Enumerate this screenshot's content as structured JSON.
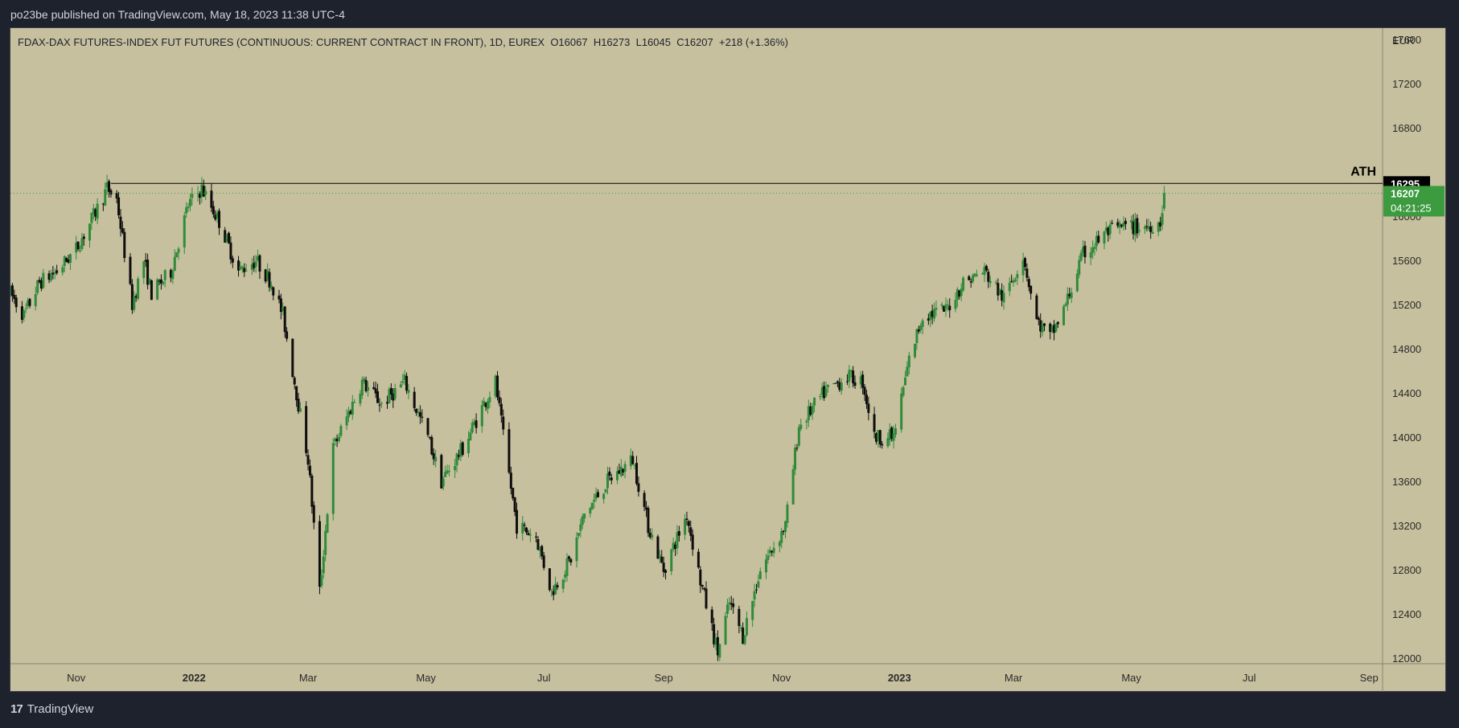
{
  "publisher_line": "po23be published on TradingView.com, May 18, 2023 11:38 UTC-4",
  "brand": {
    "logo_icon": "tradingview-logo-icon",
    "name": "TradingView"
  },
  "colors": {
    "background": "#c7c09f",
    "up": "#2f8b3a",
    "down": "#0d0d0d",
    "price_tag": "#3c9a3f",
    "ath_tag": "#000000"
  },
  "chart_data": {
    "type": "candlestick",
    "title": "FDAX-DAX FUTURES-INDEX FUT FUTURES (CONTINUOUS: CURRENT CONTRACT IN FRONT), 1D, EUREX",
    "ohlc_summary": {
      "open": "O16067",
      "high": "H16273",
      "low": "L16045",
      "close": "C16207",
      "change": "+218 (+1.36%)"
    },
    "currency": "EUR",
    "y_ticks": [
      12000,
      12400,
      12800,
      13200,
      13600,
      14000,
      14400,
      14800,
      15200,
      15600,
      16000,
      16800,
      17200,
      17600
    ],
    "ylim": [
      11950,
      17700
    ],
    "x_ticks": [
      {
        "label": "Nov",
        "date": "2021-11-01",
        "bold": false
      },
      {
        "label": "2022",
        "date": "2022-01-01",
        "bold": true
      },
      {
        "label": "Mar",
        "date": "2022-03-01",
        "bold": false
      },
      {
        "label": "May",
        "date": "2022-05-01",
        "bold": false
      },
      {
        "label": "Jul",
        "date": "2022-07-01",
        "bold": false
      },
      {
        "label": "Sep",
        "date": "2022-09-01",
        "bold": false
      },
      {
        "label": "Nov",
        "date": "2022-11-01",
        "bold": false
      },
      {
        "label": "2023",
        "date": "2023-01-01",
        "bold": true
      },
      {
        "label": "Mar",
        "date": "2023-03-01",
        "bold": false
      },
      {
        "label": "May",
        "date": "2023-05-01",
        "bold": false
      },
      {
        "label": "Jul",
        "date": "2023-07-01",
        "bold": false
      },
      {
        "label": "Sep",
        "date": "2023-09-01",
        "bold": false
      }
    ],
    "xlim": [
      "2021-09-28",
      "2023-09-08"
    ],
    "path": [
      [
        "2021-09-28",
        15300
      ],
      [
        "2021-10-05",
        15100
      ],
      [
        "2021-10-13",
        15400
      ],
      [
        "2021-10-22",
        15500
      ],
      [
        "2021-11-01",
        15700
      ],
      [
        "2021-11-10",
        16000
      ],
      [
        "2021-11-17",
        16250
      ],
      [
        "2021-11-22",
        16150
      ],
      [
        "2021-11-30",
        15200
      ],
      [
        "2021-12-06",
        15600
      ],
      [
        "2021-12-10",
        15300
      ],
      [
        "2021-12-20",
        15500
      ],
      [
        "2021-12-29",
        16100
      ],
      [
        "2022-01-05",
        16250
      ],
      [
        "2022-01-14",
        15950
      ],
      [
        "2022-01-24",
        15500
      ],
      [
        "2022-02-02",
        15600
      ],
      [
        "2022-02-10",
        15400
      ],
      [
        "2022-02-16",
        15100
      ],
      [
        "2022-02-24",
        14300
      ],
      [
        "2022-03-01",
        13800
      ],
      [
        "2022-03-07",
        12600
      ],
      [
        "2022-03-14",
        13900
      ],
      [
        "2022-03-29",
        14500
      ],
      [
        "2022-04-08",
        14300
      ],
      [
        "2022-04-20",
        14500
      ],
      [
        "2022-05-02",
        14000
      ],
      [
        "2022-05-09",
        13600
      ],
      [
        "2022-05-20",
        13900
      ],
      [
        "2022-05-31",
        14300
      ],
      [
        "2022-06-06",
        14500
      ],
      [
        "2022-06-10",
        14000
      ],
      [
        "2022-06-17",
        13200
      ],
      [
        "2022-06-27",
        13100
      ],
      [
        "2022-07-05",
        12600
      ],
      [
        "2022-07-15",
        12900
      ],
      [
        "2022-07-22",
        13300
      ],
      [
        "2022-08-03",
        13600
      ],
      [
        "2022-08-16",
        13800
      ],
      [
        "2022-08-24",
        13200
      ],
      [
        "2022-09-01",
        12800
      ],
      [
        "2022-09-13",
        13300
      ],
      [
        "2022-09-20",
        12700
      ],
      [
        "2022-09-29",
        12050
      ],
      [
        "2022-10-05",
        12500
      ],
      [
        "2022-10-12",
        12200
      ],
      [
        "2022-10-21",
        12800
      ],
      [
        "2022-11-03",
        13200
      ],
      [
        "2022-11-10",
        14100
      ],
      [
        "2022-11-23",
        14400
      ],
      [
        "2022-12-05",
        14550
      ],
      [
        "2022-12-13",
        14500
      ],
      [
        "2022-12-19",
        14000
      ],
      [
        "2022-12-29",
        14000
      ],
      [
        "2023-01-06",
        14700
      ],
      [
        "2023-01-13",
        15100
      ],
      [
        "2023-01-25",
        15150
      ],
      [
        "2023-02-03",
        15400
      ],
      [
        "2023-02-14",
        15500
      ],
      [
        "2023-02-24",
        15250
      ],
      [
        "2023-03-06",
        15650
      ],
      [
        "2023-03-13",
        15050
      ],
      [
        "2023-03-20",
        14900
      ],
      [
        "2023-03-27",
        15150
      ],
      [
        "2023-04-06",
        15650
      ],
      [
        "2023-04-18",
        15850
      ],
      [
        "2023-04-27",
        15900
      ],
      [
        "2023-05-08",
        15900
      ],
      [
        "2023-05-16",
        15950
      ],
      [
        "2023-05-18",
        16207
      ]
    ],
    "last_candle": {
      "date": "2023-05-18",
      "open": 16067,
      "high": 16273,
      "low": 16045,
      "close": 16207
    },
    "ath_line": {
      "label": "ATH",
      "price": 16295,
      "start": "2021-11-19",
      "end": "2023-09-08"
    },
    "current_price_line": {
      "price": 16207,
      "label": "16207",
      "countdown": "04:21:25"
    },
    "grid": false
  }
}
